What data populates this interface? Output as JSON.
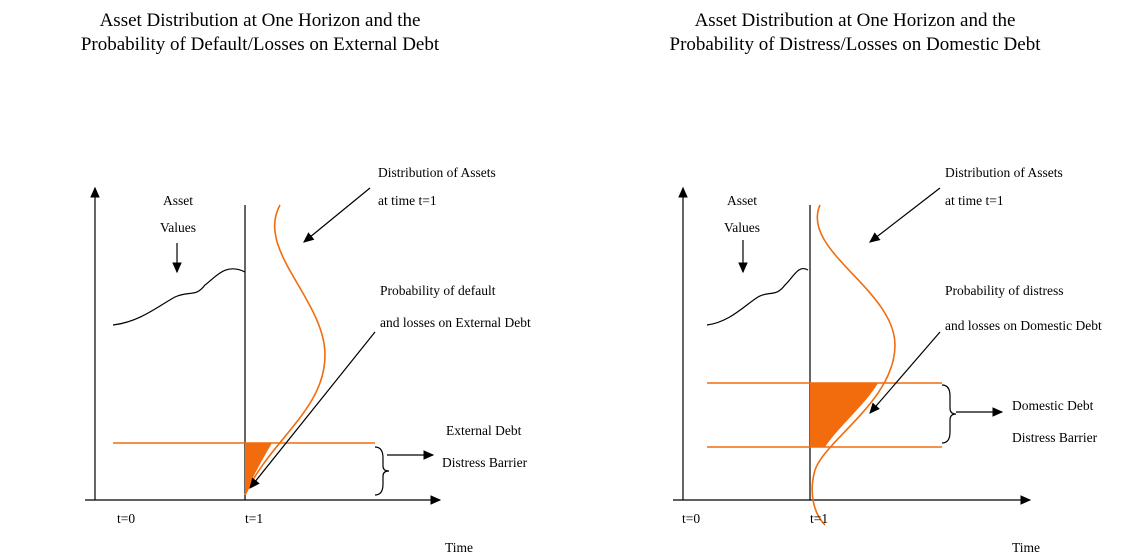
{
  "panels": [
    {
      "title": [
        "Asset Distribution at One Horizon and the",
        "Probability of Default/Losses on External Debt"
      ],
      "asset_label": [
        "Asset",
        "Values"
      ],
      "distribution_label": [
        "Distribution of Assets",
        "at time t=1"
      ],
      "probability_label": [
        "Probability of default",
        "and losses on External Debt"
      ],
      "barrier_label": [
        "External Debt",
        "Distress Barrier"
      ],
      "t0": "t=0",
      "t1": "t=1",
      "x_axis": "Time"
    },
    {
      "title": [
        "Asset Distribution at One Horizon and the",
        "Probability of Distress/Losses on Domestic Debt"
      ],
      "asset_label": [
        "Asset",
        "Values"
      ],
      "distribution_label": [
        "Distribution of Assets",
        "at time t=1"
      ],
      "probability_label": [
        "Probability of distress",
        "and losses on Domestic Debt"
      ],
      "barrier_label": [
        "Domestic Debt",
        "Distress Barrier"
      ],
      "t0": "t=0",
      "t1": "t=1",
      "x_axis": "Time"
    }
  ]
}
